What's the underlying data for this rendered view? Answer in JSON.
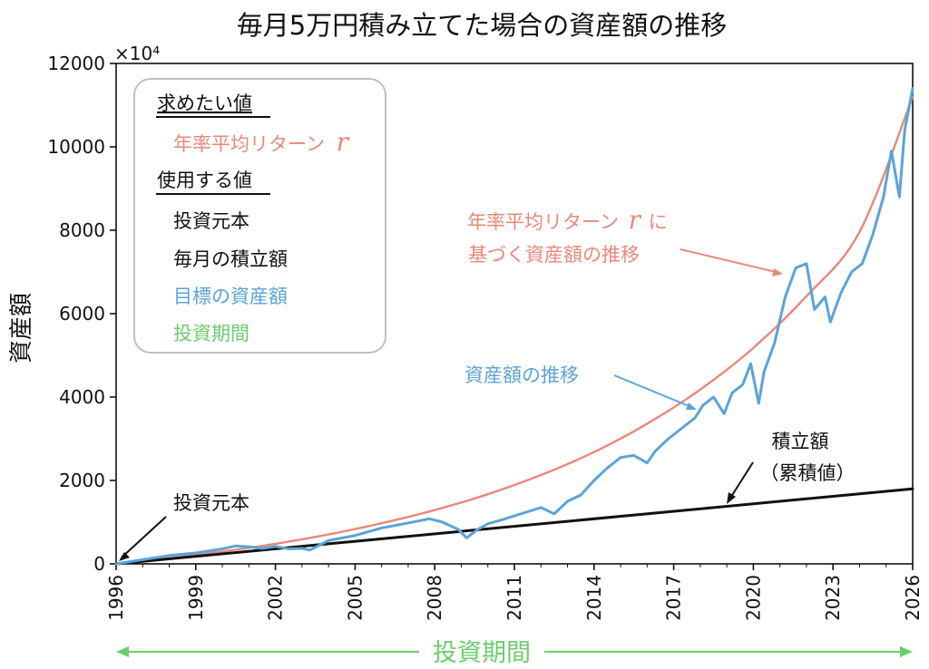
{
  "chart_data": {
    "type": "line",
    "title": "毎月5万円積み立てた場合の資産額の推移",
    "ylabel": "資産額",
    "y_scale_label": "×10⁴",
    "xlim": [
      1996,
      2026
    ],
    "ylim": [
      0,
      12000
    ],
    "x_ticks": [
      "1996",
      "1999",
      "2002",
      "2005",
      "2008",
      "2011",
      "2014",
      "2017",
      "2020",
      "2023",
      "2026"
    ],
    "y_ticks": [
      "0",
      "2000",
      "4000",
      "6000",
      "8000",
      "10000",
      "12000"
    ],
    "grid": false,
    "x_span_label": "投資期間",
    "legend_box": {
      "heading_target": "求めたい値",
      "target_item": "年率平均リターン",
      "target_symbol": "r",
      "heading_used": "使用する値",
      "used_items": [
        {
          "label": "投資元本",
          "color": "#111111"
        },
        {
          "label": "毎月の積立額",
          "color": "#111111"
        },
        {
          "label": "目標の資産額",
          "color": "#5ba3d9"
        },
        {
          "label": "投資期間",
          "color": "#6ccd6c"
        }
      ]
    },
    "annotations": {
      "principal": "投資元本",
      "cumulative_line1": "積立額",
      "cumulative_line2": "（累積値）",
      "asset_path": "資産額の推移",
      "return_curve_line1": "年率平均リターン",
      "return_curve_symbol": "r",
      "return_curve_suffix": "に",
      "return_curve_line2": "基づく資産額の推移"
    },
    "colors": {
      "return_curve": "#e8897a",
      "asset_series": "#5ba3d9",
      "cumulative": "#111111",
      "period": "#6ccd6c"
    },
    "series": [
      {
        "key": "cumulative",
        "x": [
          1996,
          2026
        ],
        "y": [
          0,
          1800
        ]
      },
      {
        "key": "return_curve",
        "x": [
          1996,
          1998,
          2000,
          2002,
          2004,
          2006,
          2008,
          2010,
          2012,
          2014,
          2016,
          2018,
          2020,
          2022,
          2024,
          2026
        ],
        "y": [
          0,
          135,
          295,
          480,
          705,
          975,
          1290,
          1670,
          2130,
          2680,
          3360,
          4180,
          5180,
          6420,
          7960,
          11200
        ]
      },
      {
        "key": "asset_series",
        "x": [
          1996,
          1997,
          1998,
          1999,
          2000,
          2000.5,
          2001,
          2001.5,
          2002,
          2002.5,
          2003,
          2003.3,
          2004,
          2005,
          2006,
          2007,
          2007.8,
          2008.3,
          2008.9,
          2009.2,
          2009.6,
          2010,
          2010.5,
          2011,
          2011.5,
          2012,
          2012.5,
          2013,
          2013.5,
          2014,
          2014.5,
          2015,
          2015.5,
          2016,
          2016.3,
          2016.8,
          2017.3,
          2017.8,
          2018.1,
          2018.5,
          2018.9,
          2019.2,
          2019.6,
          2019.9,
          2020.2,
          2020.4,
          2020.8,
          2021.2,
          2021.6,
          2022,
          2022.3,
          2022.7,
          2022.9,
          2023.3,
          2023.7,
          2024.1,
          2024.5,
          2024.9,
          2025.2,
          2025.5,
          2025.7,
          2026
        ],
        "y": [
          0,
          100,
          200,
          260,
          360,
          430,
          410,
          370,
          420,
          360,
          370,
          330,
          560,
          680,
          860,
          980,
          1080,
          1000,
          820,
          620,
          820,
          960,
          1050,
          1150,
          1250,
          1350,
          1200,
          1500,
          1650,
          2000,
          2300,
          2550,
          2600,
          2420,
          2700,
          3000,
          3250,
          3500,
          3800,
          4000,
          3600,
          4100,
          4300,
          4800,
          3850,
          4600,
          5300,
          6400,
          7100,
          7200,
          6100,
          6400,
          5800,
          6500,
          7000,
          7200,
          7900,
          8800,
          9900,
          8800,
          10400,
          11400
        ]
      }
    ]
  }
}
